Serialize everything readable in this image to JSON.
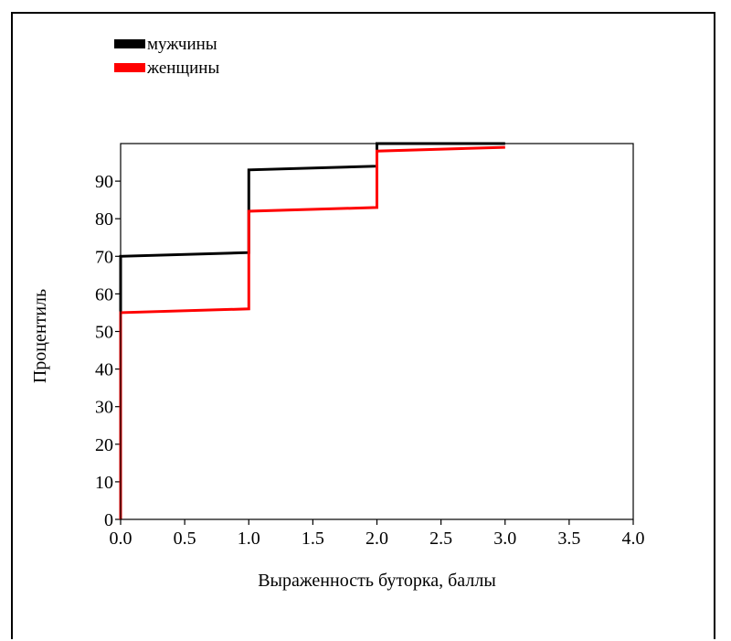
{
  "chart_data": {
    "type": "line",
    "step": true,
    "xlabel": "Выраженность буторка, баллы",
    "ylabel": "Процентиль",
    "xlim": [
      0,
      4
    ],
    "ylim": [
      0,
      100
    ],
    "x_ticks": [
      "0.0",
      "0.5",
      "1.0",
      "1.5",
      "2.0",
      "2.5",
      "3.0",
      "3.5",
      "4.0"
    ],
    "y_ticks": [
      "0",
      "10",
      "20",
      "30",
      "40",
      "50",
      "60",
      "70",
      "80",
      "90"
    ],
    "grid": false,
    "legend_position": "top-left",
    "series": [
      {
        "name": "мужчины",
        "color": "#000000",
        "points": [
          [
            0,
            0
          ],
          [
            0,
            70
          ],
          [
            1,
            71
          ],
          [
            1,
            93
          ],
          [
            2,
            94
          ],
          [
            2,
            100
          ],
          [
            3,
            100
          ]
        ]
      },
      {
        "name": "женщины",
        "color": "#ff0000",
        "points": [
          [
            0,
            0
          ],
          [
            0,
            55
          ],
          [
            1,
            56
          ],
          [
            1,
            82
          ],
          [
            2,
            83
          ],
          [
            2,
            98
          ],
          [
            3,
            99
          ]
        ]
      }
    ]
  }
}
